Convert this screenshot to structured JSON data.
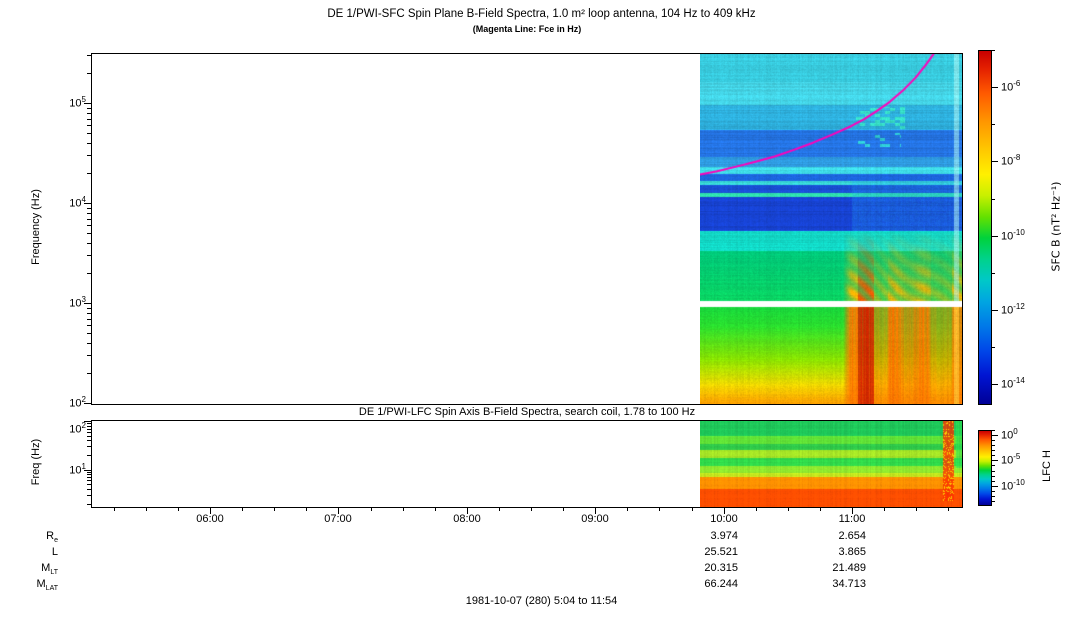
{
  "header": {
    "title": "DE 1/PWI-SFC  Spin Plane B-Field Spectra, 1.0 m² loop antenna, 104 Hz to 409 kHz",
    "subtitle": "(Magenta Line: Fce in Hz)"
  },
  "sfc_panel": {
    "ylabel": "Frequency (Hz)",
    "ytick_exps": [
      5,
      4,
      3,
      2
    ],
    "colorbar": {
      "label": "SFC B (nT² Hz⁻¹)",
      "tick_exps": [
        -6,
        -8,
        -10,
        -12,
        -14
      ],
      "gradient": [
        [
          0,
          "#c80000"
        ],
        [
          0.05,
          "#e42000"
        ],
        [
          0.12,
          "#ff5a00"
        ],
        [
          0.2,
          "#ff9600"
        ],
        [
          0.28,
          "#ffc800"
        ],
        [
          0.35,
          "#fff000"
        ],
        [
          0.41,
          "#c8f000"
        ],
        [
          0.47,
          "#64e100"
        ],
        [
          0.53,
          "#00d23c"
        ],
        [
          0.59,
          "#00d28c"
        ],
        [
          0.65,
          "#00c8c8"
        ],
        [
          0.71,
          "#00a5e1"
        ],
        [
          0.78,
          "#0078e8"
        ],
        [
          0.85,
          "#0046e8"
        ],
        [
          0.92,
          "#0014d2"
        ],
        [
          1,
          "#000096"
        ]
      ]
    }
  },
  "lfc_panel": {
    "title": "DE 1/PWI-LFC  Spin Axis B-Field Spectra, search coil, 1.78 to 100 Hz",
    "ylabel": "Freq (Hz)",
    "ytick_exps": [
      2,
      1
    ],
    "colorbar": {
      "label": "LFC H",
      "tick_exps": [
        0,
        -5,
        -10
      ],
      "gradient": [
        [
          0,
          "#c80000"
        ],
        [
          0.05,
          "#e42000"
        ],
        [
          0.12,
          "#ff5a00"
        ],
        [
          0.2,
          "#ff9600"
        ],
        [
          0.28,
          "#ffc800"
        ],
        [
          0.35,
          "#fff000"
        ],
        [
          0.41,
          "#c8f000"
        ],
        [
          0.47,
          "#64e100"
        ],
        [
          0.53,
          "#00d23c"
        ],
        [
          0.59,
          "#00d28c"
        ],
        [
          0.65,
          "#00c8c8"
        ],
        [
          0.71,
          "#00a5e1"
        ],
        [
          0.78,
          "#0078e8"
        ],
        [
          0.85,
          "#0046e8"
        ],
        [
          0.92,
          "#0014d2"
        ],
        [
          1,
          "#000096"
        ]
      ]
    }
  },
  "time_axis": {
    "labels": [
      "06:00",
      "07:00",
      "08:00",
      "09:00",
      "10:00",
      "11:00"
    ],
    "hours": [
      6,
      7,
      8,
      9,
      10,
      11
    ]
  },
  "ephemeris": {
    "rows": [
      {
        "label_base": "R",
        "label_sub": "e",
        "values": [
          "3.974",
          "2.654"
        ]
      },
      {
        "label_base": "L",
        "label_sub": "",
        "values": [
          "25.521",
          "3.865"
        ]
      },
      {
        "label_base": "M",
        "label_sub": "LT",
        "values": [
          "20.315",
          "21.489"
        ]
      },
      {
        "label_base": "M",
        "label_sub": "LAT",
        "values": [
          "66.244",
          "34.713"
        ]
      }
    ]
  },
  "footer": {
    "date_label": "1981-10-07 (280) 5:04 to 11:54"
  },
  "chart_data": [
    {
      "type": "heatmap",
      "title": "DE 1/PWI-SFC  Spin Plane B-Field Spectra, 1.0 m² loop antenna, 104 Hz to 409 kHz",
      "subtitle": "(Magenta Line: Fce in Hz)",
      "ylabel": "Frequency (Hz)",
      "yscale": "log",
      "ylim": [
        100,
        310000
      ],
      "time_range_hours": [
        5.07,
        11.86
      ],
      "data_start_hour": 9.82,
      "xticks": [
        "06:00",
        "07:00",
        "08:00",
        "09:00",
        "10:00",
        "11:00"
      ],
      "colorbar_label": "SFC B (nT² Hz⁻¹)",
      "colorbar_tick_exps": [
        -6,
        -8,
        -10,
        -12,
        -14
      ],
      "fce_line": {
        "color": "#ff00bb",
        "points_hz": [
          [
            9.816,
            19000
          ],
          [
            9.95,
            20500
          ],
          [
            10.1,
            22800
          ],
          [
            10.25,
            25500
          ],
          [
            10.4,
            28800
          ],
          [
            10.55,
            33500
          ],
          [
            10.7,
            39500
          ],
          [
            10.85,
            47500
          ],
          [
            11.0,
            58000
          ],
          [
            11.1,
            68000
          ],
          [
            11.2,
            82000
          ],
          [
            11.3,
            101000
          ],
          [
            11.4,
            130000
          ],
          [
            11.5,
            175000
          ],
          [
            11.58,
            235000
          ],
          [
            11.64,
            300000
          ],
          [
            11.67,
            345000
          ]
        ]
      },
      "bands": [
        {
          "f": [
            160000,
            320000
          ],
          "stops": [
            [
              0,
              "#38cadd"
            ]
          ],
          "row_noise": 0.1,
          "col_noise": 0.06
        },
        {
          "f": [
            95000,
            160000
          ],
          "stops": [
            [
              0,
              "#44d4e6"
            ]
          ],
          "row_noise": 0.12,
          "col_noise": 0.06
        },
        {
          "f": [
            54000,
            95000
          ],
          "stops": [
            [
              0,
              "#2eb0dd"
            ]
          ],
          "row_noise": 0.14,
          "col_noise": 0.06
        },
        {
          "f": [
            29000,
            54000
          ],
          "stops": [
            [
              0,
              "#2472e0"
            ]
          ],
          "row_noise": 0.16,
          "col_noise": 0.06
        },
        {
          "f": [
            23000,
            29000
          ],
          "stops": [
            [
              0,
              "#2f9ce2"
            ]
          ],
          "row_noise": 0.14,
          "col_noise": 0.06
        },
        {
          "f": [
            19500,
            23000
          ],
          "stops": [
            [
              0,
              "#3fdce8"
            ]
          ],
          "row_noise": 0.1,
          "col_noise": 0.05
        },
        {
          "f": [
            16500,
            19500
          ],
          "stops": [
            [
              0,
              "#1c64dc"
            ]
          ],
          "row_noise": 0.14,
          "col_noise": 0.06
        },
        {
          "f": [
            15000,
            16500
          ],
          "stops": [
            [
              0,
              "#38d8d8"
            ]
          ],
          "row_noise": 0.08,
          "col_noise": 0.05
        },
        {
          "f": [
            12600,
            15000
          ],
          "stops": [
            [
              0,
              "#1a50d8"
            ]
          ],
          "row_noise": 0.14,
          "col_noise": 0.06
        },
        {
          "f": [
            11500,
            12600
          ],
          "stops": [
            [
              0,
              "#2fe0ae"
            ]
          ],
          "row_noise": 0.08,
          "col_noise": 0.05
        },
        {
          "f": [
            5200,
            11500
          ],
          "stops": [
            [
              0,
              "#1742d0"
            ]
          ],
          "row_noise": 0.16,
          "col_noise": 0.07
        },
        {
          "f": [
            3300,
            5200
          ],
          "stops": [
            [
              0,
              "#12d8c6"
            ]
          ],
          "row_noise": 0.1,
          "col_noise": 0.06
        },
        {
          "f": [
            1060,
            3300
          ],
          "stops": [
            [
              0,
              "#0ad462"
            ],
            [
              1,
              "#00c87a"
            ]
          ],
          "row_noise": 0.07,
          "col_noise": 0.06
        },
        {
          "f": [
            920,
            1060
          ],
          "stops": [
            [
              0,
              "#ffffff"
            ]
          ],
          "gap": true,
          "row_noise": 0,
          "col_noise": 0
        },
        {
          "f": [
            100,
            920
          ],
          "stops": [
            [
              0,
              "#ffa000"
            ],
            [
              0.18,
              "#f2d600"
            ],
            [
              0.45,
              "#8ce400"
            ],
            [
              0.8,
              "#2ade2e"
            ],
            [
              1,
              "#18d53c"
            ]
          ],
          "row_noise": 0.05,
          "col_noise": 0.07
        }
      ],
      "features": [
        {
          "type": "enhance",
          "t": [
            11.0,
            11.86
          ],
          "f": [
            5200,
            16500
          ],
          "color": "#1f9ce8",
          "amount": 0.35
        },
        {
          "type": "burst",
          "t": [
            10.93,
            11.86
          ],
          "f": [
            100,
            920
          ],
          "warm": "#ff7400",
          "hot": "#d32600"
        },
        {
          "type": "burst_mid",
          "t": [
            10.93,
            11.86
          ],
          "f": [
            1060,
            5200
          ],
          "warm": "#ffb000",
          "hot": "#f05800"
        },
        {
          "type": "speckles",
          "t": [
            11.03,
            11.45
          ],
          "f": [
            55000,
            90000
          ],
          "color": "#38e8c4",
          "density": 0.3
        },
        {
          "type": "speckles",
          "t": [
            11.05,
            11.38
          ],
          "f": [
            36000,
            50000
          ],
          "color": "#30d8d0",
          "density": 0.18
        },
        {
          "type": "vstreak",
          "t": [
            11.8,
            11.835
          ],
          "f": [
            1060,
            310000
          ],
          "color": "#aef2ee",
          "amount": 0.55
        },
        {
          "type": "vstreak",
          "t": [
            11.8,
            11.835
          ],
          "f": [
            100,
            920
          ],
          "color": "#ffec50",
          "amount": 0.5
        }
      ]
    },
    {
      "type": "heatmap",
      "title": "DE 1/PWI-LFC  Spin Axis B-Field Spectra, search coil, 1.78 to 100 Hz",
      "ylabel": "Freq (Hz)",
      "yscale": "log",
      "ylim": [
        1.78,
        100
      ],
      "time_range_hours": [
        5.07,
        11.86
      ],
      "data_start_hour": 9.82,
      "colorbar_label": "LFC H",
      "colorbar_tick_exps": [
        0,
        -5,
        -10
      ],
      "bands_frac": [
        {
          "y": [
            0,
            0.17
          ],
          "color": "#1fc95a"
        },
        {
          "y": [
            0.17,
            0.26
          ],
          "color": "#63e437"
        },
        {
          "y": [
            0.26,
            0.34
          ],
          "color": "#2fc94a"
        },
        {
          "y": [
            0.34,
            0.43
          ],
          "color": "#a6e426"
        },
        {
          "y": [
            0.43,
            0.52
          ],
          "color": "#30d84a"
        },
        {
          "y": [
            0.52,
            0.61
          ],
          "color": "#8de42e"
        },
        {
          "y": [
            0.61,
            0.655
          ],
          "color": "#c6e81e"
        },
        {
          "y": [
            0.655,
            0.79
          ],
          "color": "#ff9000"
        },
        {
          "y": [
            0.79,
            1.0
          ],
          "color": "#ff4e00"
        }
      ],
      "features": [
        {
          "type": "burst",
          "t": [
            11.715,
            11.8
          ],
          "y": [
            0,
            0.93
          ],
          "hot": "#ff2e00",
          "fleck": "#ffd800"
        },
        {
          "type": "edge_green",
          "t": [
            11.81,
            11.86
          ],
          "y": [
            0,
            0.55
          ],
          "color": "#2ce052"
        }
      ]
    }
  ]
}
